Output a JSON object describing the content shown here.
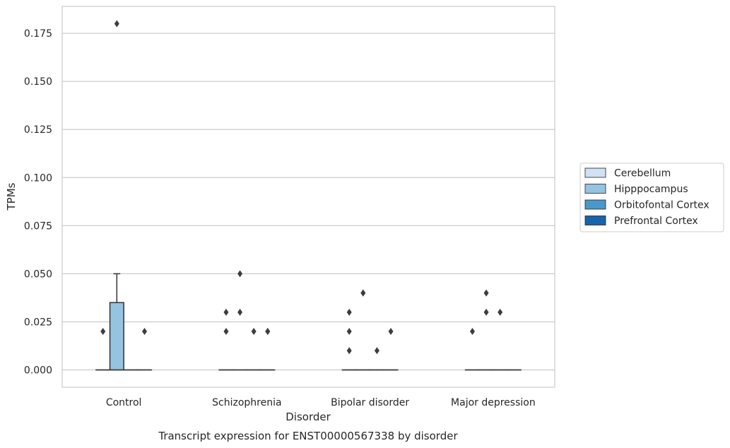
{
  "chart_data": {
    "type": "box",
    "title": "Transcript expression for ENST00000567338 by disorder",
    "xlabel": "Disorder",
    "ylabel": "TPMs",
    "categories": [
      "Control",
      "Schizophrenia",
      "Bipolar disorder",
      "Major depression"
    ],
    "ylim": [
      -0.009,
      0.189
    ],
    "yticks": [
      0.0,
      0.025,
      0.05,
      0.075,
      0.1,
      0.125,
      0.15,
      0.175
    ],
    "ytick_labels": [
      "0.000",
      "0.025",
      "0.050",
      "0.075",
      "0.100",
      "0.125",
      "0.150",
      "0.175"
    ],
    "grid": "horizontal",
    "legend": {
      "position": "right",
      "entries": [
        "Cerebellum",
        "Hipppocampus",
        "Orbitofontal Cortex",
        "Prefrontal Cortex"
      ]
    },
    "colors": [
      "#d0e1f2",
      "#94c4df",
      "#4a98c9",
      "#1764ab"
    ],
    "series": [
      {
        "name": "Cerebellum",
        "boxes": [
          {
            "category": "Control",
            "q1": 0.0,
            "median": 0.0,
            "q3": 0.0,
            "whislo": 0.0,
            "whishi": 0.0,
            "fliers": [
              0.02
            ]
          },
          {
            "category": "Schizophrenia",
            "q1": 0.0,
            "median": 0.0,
            "q3": 0.0,
            "whislo": 0.0,
            "whishi": 0.0,
            "fliers": [
              0.02,
              0.03
            ]
          },
          {
            "category": "Bipolar disorder",
            "q1": 0.0,
            "median": 0.0,
            "q3": 0.0,
            "whislo": 0.0,
            "whishi": 0.0,
            "fliers": [
              0.01,
              0.02,
              0.03
            ]
          },
          {
            "category": "Major depression",
            "q1": 0.0,
            "median": 0.0,
            "q3": 0.0,
            "whislo": 0.0,
            "whishi": 0.0,
            "fliers": [
              0.02
            ]
          }
        ]
      },
      {
        "name": "Hipppocampus",
        "boxes": [
          {
            "category": "Control",
            "q1": 0.0,
            "median": 0.0,
            "q3": 0.035,
            "whislo": 0.0,
            "whishi": 0.05,
            "fliers": [
              0.18
            ]
          },
          {
            "category": "Schizophrenia",
            "q1": 0.0,
            "median": 0.0,
            "q3": 0.0,
            "whislo": 0.0,
            "whishi": 0.0,
            "fliers": [
              0.03,
              0.05
            ]
          },
          {
            "category": "Bipolar disorder",
            "q1": 0.0,
            "median": 0.0,
            "q3": 0.0,
            "whislo": 0.0,
            "whishi": 0.0,
            "fliers": [
              0.04,
              0.04
            ]
          },
          {
            "category": "Major depression",
            "q1": 0.0,
            "median": 0.0,
            "q3": 0.0,
            "whislo": 0.0,
            "whishi": 0.0,
            "fliers": [
              0.03,
              0.04
            ]
          }
        ]
      },
      {
        "name": "Orbitofontal Cortex",
        "boxes": [
          {
            "category": "Control",
            "q1": 0.0,
            "median": 0.0,
            "q3": 0.0,
            "whislo": 0.0,
            "whishi": 0.0,
            "fliers": []
          },
          {
            "category": "Schizophrenia",
            "q1": 0.0,
            "median": 0.0,
            "q3": 0.0,
            "whislo": 0.0,
            "whishi": 0.0,
            "fliers": [
              0.02
            ]
          },
          {
            "category": "Bipolar disorder",
            "q1": 0.0,
            "median": 0.0,
            "q3": 0.0,
            "whislo": 0.0,
            "whishi": 0.0,
            "fliers": [
              0.01
            ]
          },
          {
            "category": "Major depression",
            "q1": 0.0,
            "median": 0.0,
            "q3": 0.0,
            "whislo": 0.0,
            "whishi": 0.0,
            "fliers": [
              0.03
            ]
          }
        ]
      },
      {
        "name": "Prefrontal Cortex",
        "boxes": [
          {
            "category": "Control",
            "q1": 0.0,
            "median": 0.0,
            "q3": 0.0,
            "whislo": 0.0,
            "whishi": 0.0,
            "fliers": [
              0.02
            ]
          },
          {
            "category": "Schizophrenia",
            "q1": 0.0,
            "median": 0.0,
            "q3": 0.0,
            "whislo": 0.0,
            "whishi": 0.0,
            "fliers": [
              0.02,
              0.02
            ]
          },
          {
            "category": "Bipolar disorder",
            "q1": 0.0,
            "median": 0.0,
            "q3": 0.0,
            "whislo": 0.0,
            "whishi": 0.0,
            "fliers": [
              0.02
            ]
          },
          {
            "category": "Major depression",
            "q1": 0.0,
            "median": 0.0,
            "q3": 0.0,
            "whislo": 0.0,
            "whishi": 0.0,
            "fliers": []
          }
        ]
      }
    ]
  }
}
